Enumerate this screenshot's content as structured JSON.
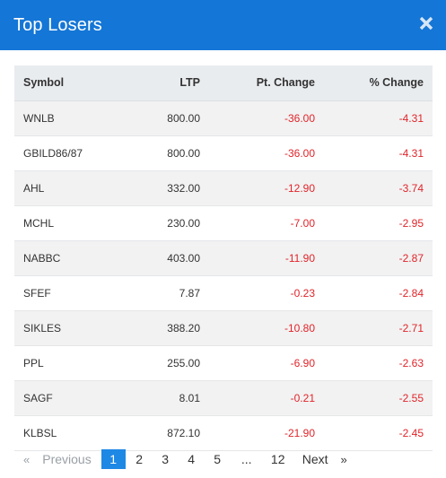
{
  "modal": {
    "title": "Top Losers",
    "close_label": "×"
  },
  "table": {
    "headers": {
      "symbol": "Symbol",
      "ltp": "LTP",
      "pt_change": "Pt. Change",
      "pct_change": "% Change"
    },
    "rows": [
      {
        "symbol": "WNLB",
        "ltp": "800.00",
        "pt_change": "-36.00",
        "pct_change": "-4.31"
      },
      {
        "symbol": "GBILD86/87",
        "ltp": "800.00",
        "pt_change": "-36.00",
        "pct_change": "-4.31"
      },
      {
        "symbol": "AHL",
        "ltp": "332.00",
        "pt_change": "-12.90",
        "pct_change": "-3.74"
      },
      {
        "symbol": "MCHL",
        "ltp": "230.00",
        "pt_change": "-7.00",
        "pct_change": "-2.95"
      },
      {
        "symbol": "NABBC",
        "ltp": "403.00",
        "pt_change": "-11.90",
        "pct_change": "-2.87"
      },
      {
        "symbol": "SFEF",
        "ltp": "7.87",
        "pt_change": "-0.23",
        "pct_change": "-2.84"
      },
      {
        "symbol": "SIKLES",
        "ltp": "388.20",
        "pt_change": "-10.80",
        "pct_change": "-2.71"
      },
      {
        "symbol": "PPL",
        "ltp": "255.00",
        "pt_change": "-6.90",
        "pct_change": "-2.63"
      },
      {
        "symbol": "SAGF",
        "ltp": "8.01",
        "pt_change": "-0.21",
        "pct_change": "-2.55"
      },
      {
        "symbol": "KLBSL",
        "ltp": "872.10",
        "pt_change": "-21.90",
        "pct_change": "-2.45"
      }
    ]
  },
  "pagination": {
    "prev_chevron": "«",
    "prev_label": "Previous",
    "pages": [
      "1",
      "2",
      "3",
      "4",
      "5"
    ],
    "active_page": "1",
    "ellipsis": "...",
    "last_page": "12",
    "next_label": "Next",
    "next_chevron": "»"
  },
  "colors": {
    "header_bg": "#1476d6",
    "negative": "#e0242a",
    "active_page": "#1e88e5",
    "table_head_bg": "#e9ecef"
  }
}
